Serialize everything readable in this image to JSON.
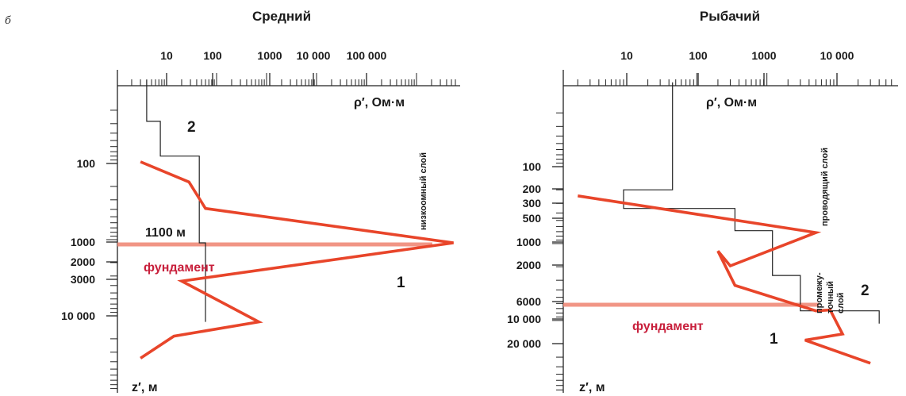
{
  "figure": {
    "panel_letter": "б"
  },
  "colors": {
    "model_line": "#e8452a",
    "foundation_line": "#f08a78",
    "foundation_text": "#c8203c",
    "axis": "#222222"
  },
  "chart_data": [
    {
      "type": "line",
      "title": "Средний",
      "xlabel": "ρ′, Ом·м",
      "ylabel": "z′, м",
      "x_scale": "log",
      "y_scale": "log",
      "x_tick_labels": [
        "10",
        "100",
        "1000",
        "10 000",
        "100 000"
      ],
      "y_tick_labels": [
        "100",
        "1000",
        "2000",
        "3000",
        "10 000"
      ],
      "series": [
        {
          "name": "1",
          "points": [
            [
              3,
              95
            ],
            [
              28,
              175
            ],
            [
              60,
              390
            ],
            [
              5500000,
              1100
            ],
            [
              20,
              3500
            ],
            [
              700,
              12000
            ],
            [
              14,
              18500
            ],
            [
              3,
              36000
            ]
          ]
        },
        {
          "name": "2",
          "points": [
            [
              4,
              8
            ],
            [
              4,
              28
            ],
            [
              7.5,
              28
            ],
            [
              7.5,
              80
            ],
            [
              45,
              80
            ],
            [
              45,
              1100
            ],
            [
              60,
              1100
            ],
            [
              60,
              12000
            ]
          ]
        }
      ],
      "annotations": {
        "depth_label": "1100 м",
        "foundation": "фундамент",
        "layer_label": "низкоомный слой",
        "curve_1_label": "1",
        "curve_2_label": "2"
      }
    },
    {
      "type": "line",
      "title": "Рыбачий",
      "xlabel": "ρ′, Ом·м",
      "ylabel": "z′, м",
      "x_scale": "log",
      "y_scale": "log",
      "x_tick_labels": [
        "10",
        "100",
        "1000",
        "10 000"
      ],
      "y_tick_labels": [
        "100",
        "200",
        "300",
        "500",
        "1000",
        "2000",
        "6000",
        "10 000",
        "20 000"
      ],
      "series": [
        {
          "name": "1",
          "points": [
            [
              2,
              240
            ],
            [
              5000,
              720
            ],
            [
              300,
              1950
            ],
            [
              200,
              1250
            ],
            [
              350,
              3500
            ],
            [
              5000,
              7500
            ],
            [
              8000,
              7300
            ],
            [
              12000,
              15000
            ],
            [
              3500,
              18000
            ],
            [
              30000,
              36000
            ]
          ]
        },
        {
          "name": "2",
          "points": [
            [
              45,
              8
            ],
            [
              45,
              200
            ],
            [
              9,
              200
            ],
            [
              9,
              350
            ],
            [
              350,
              350
            ],
            [
              350,
              680
            ],
            [
              1200,
              680
            ],
            [
              1200,
              1200
            ],
            [
              1200,
              1300
            ],
            [
              1200,
              2600
            ],
            [
              3000,
              2600
            ],
            [
              3000,
              7500
            ],
            [
              40000,
              7500
            ],
            [
              40000,
              11000
            ]
          ]
        }
      ],
      "annotations": {
        "foundation": "фундамент",
        "layer_label_upper": "проводящий слой",
        "layer_label_lower_1": "промежу-",
        "layer_label_lower_2": "точный",
        "layer_label_lower_3": "слой",
        "curve_1_label": "1",
        "curve_2_label": "2"
      }
    }
  ]
}
